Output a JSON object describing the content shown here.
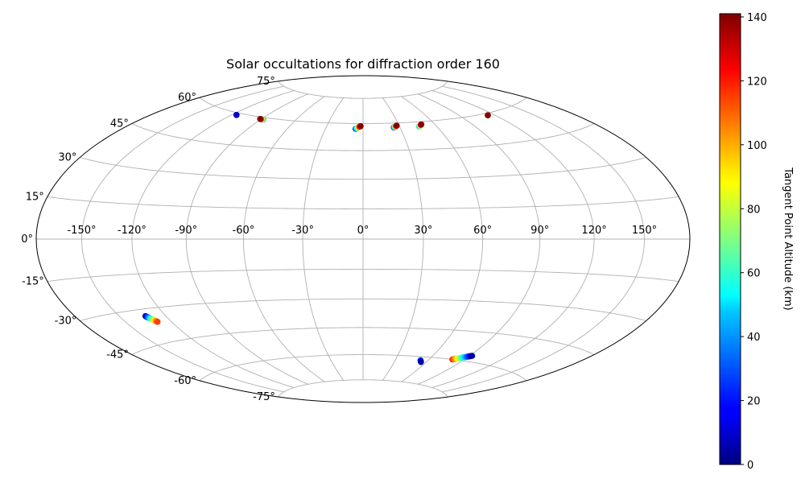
{
  "chart_data": {
    "type": "scatter",
    "projection": "hammer",
    "title": "Solar occultations for diffraction order 160",
    "grid": true,
    "longitude_ticks": [
      "-150°",
      "-120°",
      "-90°",
      "-60°",
      "-30°",
      "0°",
      "30°",
      "60°",
      "90°",
      "120°",
      "150°"
    ],
    "latitude_ticks": [
      "75°",
      "60°",
      "45°",
      "30°",
      "15°",
      "0°",
      "-15°",
      "-30°",
      "-45°",
      "-60°",
      "-75°"
    ],
    "xlim": [
      -180,
      180
    ],
    "ylim": [
      -90,
      90
    ],
    "colorbar": {
      "label": "Tangent Point Altitude (km)",
      "colormap": "jet",
      "range": [
        0,
        141
      ],
      "ticks": [
        "0",
        "20",
        "40",
        "60",
        "80",
        "100",
        "120",
        "140"
      ]
    },
    "clusters": [
      {
        "lon_start": -116,
        "lat_start": 59,
        "lon_end": -116,
        "lat_end": 59,
        "alt_start": 10,
        "alt_end": 10,
        "n": 2
      },
      {
        "lon_start": -88,
        "lat_start": 59,
        "lon_end": -91,
        "lat_end": 59,
        "alt_start": 40,
        "alt_end": 140,
        "n": 8
      },
      {
        "lon_start": -6,
        "lat_start": 57,
        "lon_end": -2,
        "lat_end": 58.5,
        "alt_start": 20,
        "alt_end": 140,
        "n": 12
      },
      {
        "lon_start": 25,
        "lat_start": 57.5,
        "lon_end": 28,
        "lat_end": 58.5,
        "alt_start": 20,
        "alt_end": 140,
        "n": 10
      },
      {
        "lon_start": 46,
        "lat_start": 57.5,
        "lon_end": 49,
        "lat_end": 58.5,
        "alt_start": 40,
        "alt_end": 140,
        "n": 10
      },
      {
        "lon_start": 114,
        "lat_start": 59,
        "lon_end": 114,
        "lat_end": 59,
        "alt_start": 135,
        "alt_end": 140,
        "n": 2
      },
      {
        "lon_start": -133,
        "lat_start": -33,
        "lon_end": -129,
        "lat_end": -36,
        "alt_start": 5,
        "alt_end": 115,
        "n": 22
      },
      {
        "lon_start": 80,
        "lat_start": -60,
        "lon_end": 92,
        "lat_end": -57,
        "alt_start": 120,
        "alt_end": 5,
        "n": 22
      },
      {
        "lon_start": 53,
        "lat_start": -62,
        "lon_end": 55,
        "lat_end": -63,
        "alt_start": 30,
        "alt_end": 5,
        "n": 4
      }
    ]
  }
}
